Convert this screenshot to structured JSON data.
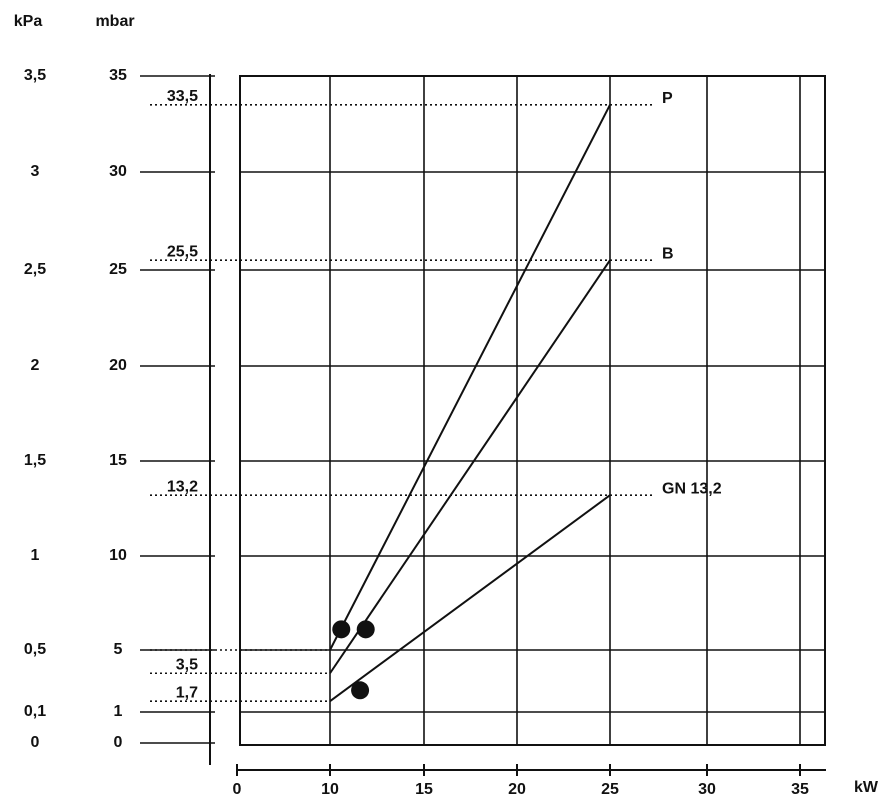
{
  "chart_data": {
    "type": "line",
    "y_unit_label": "mbar",
    "y2_unit_label": "kPa",
    "x_unit_label": "kW",
    "xlim": [
      0,
      35
    ],
    "xticks": [
      0,
      10,
      15,
      20,
      25,
      30,
      35
    ],
    "ylim": [
      0,
      35
    ],
    "yticks": [
      0,
      1,
      5,
      10,
      15,
      20,
      25,
      30,
      35
    ],
    "y2lim": [
      0,
      3.5
    ],
    "y2ticks": [
      0,
      {
        "value": 0.1,
        "label": "0,1"
      },
      {
        "value": 0.5,
        "label": "0,5"
      },
      1,
      {
        "value": 1.5,
        "label": "1,5"
      },
      2,
      {
        "value": 2.5,
        "label": "2,5"
      },
      3,
      {
        "value": 3.5,
        "label": "3,5"
      }
    ],
    "grid": true,
    "color": "#111111",
    "series": [
      {
        "name": "P",
        "color": "#111111",
        "x": [
          10,
          25
        ],
        "values": [
          5,
          33.5
        ]
      },
      {
        "name": "B",
        "color": "#111111",
        "x": [
          10,
          25
        ],
        "values": [
          3.5,
          25.5
        ]
      },
      {
        "name": "GN 13,2",
        "color": "#111111",
        "x": [
          10,
          25
        ],
        "values": [
          1.7,
          13.2
        ]
      }
    ],
    "markers": {
      "color": "#111111",
      "x": [
        10.6,
        11.9,
        11.6
      ],
      "values": [
        6.1,
        6.1,
        2.4
      ]
    },
    "annotations": [
      {
        "label": "33,5",
        "x": 25,
        "y": 33.5
      },
      {
        "label": "25,5",
        "x": 25,
        "y": 25.5
      },
      {
        "label": "13,2",
        "x": 25,
        "y": 13.2
      },
      {
        "x": 10,
        "y": 5
      },
      {
        "label": "3,5",
        "x": 10,
        "y": 3.5
      },
      {
        "label": "1,7",
        "x": 10,
        "y": 1.7
      }
    ]
  }
}
